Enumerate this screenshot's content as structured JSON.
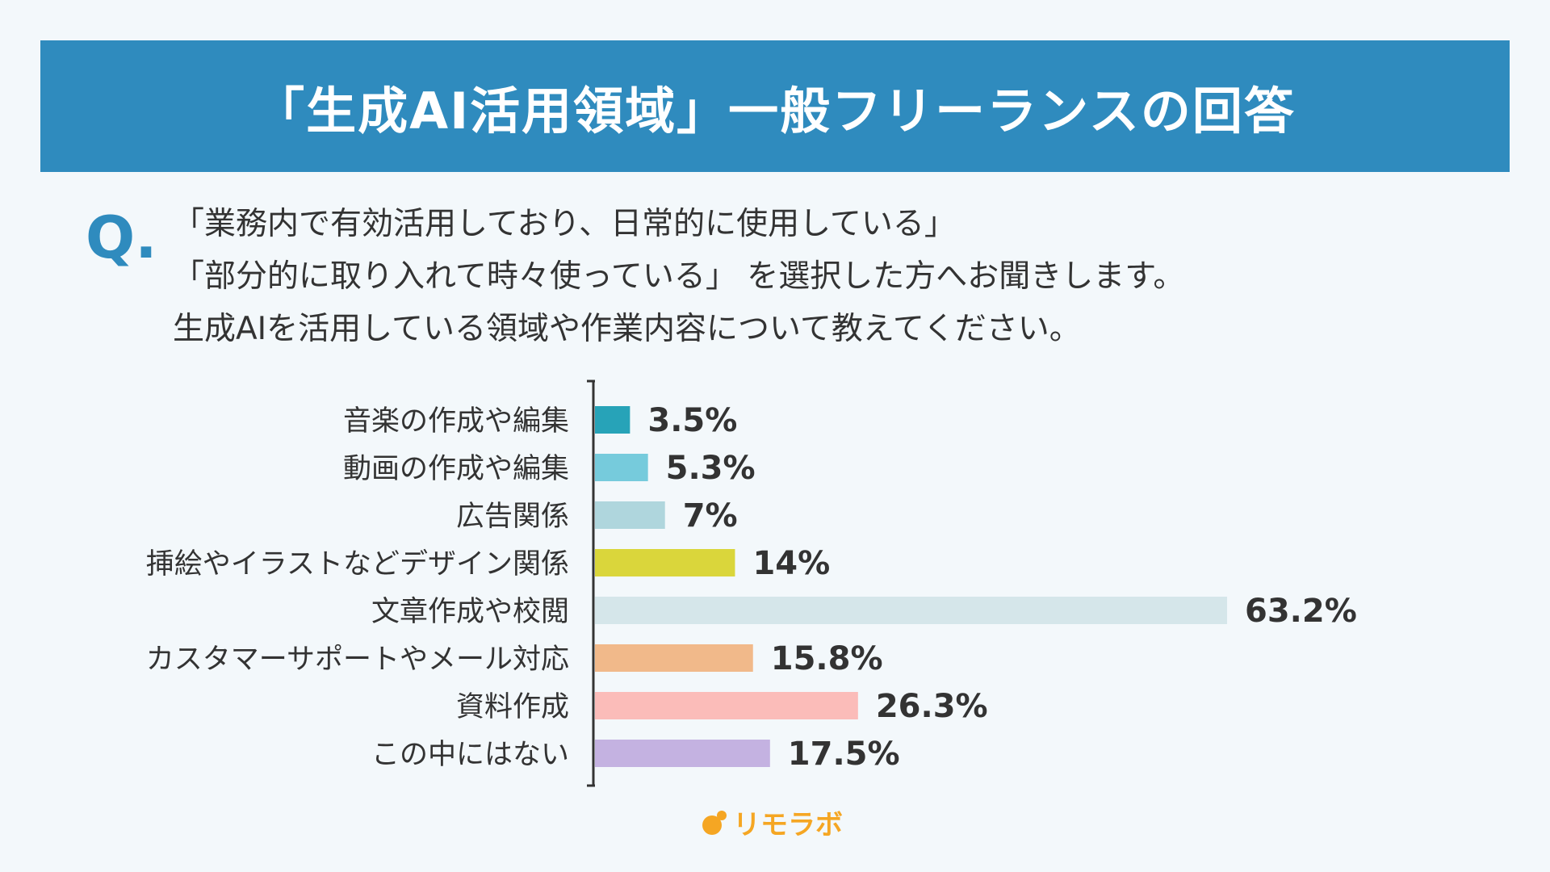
{
  "header": {
    "title": "「生成AI活用領域」一般フリーランスの回答"
  },
  "question": {
    "mark": "Q.",
    "lines": [
      "「業務内で有効活用しており、日常的に使用している」",
      "「部分的に取り入れて時々使っている」 を選択した方へお聞きします。",
      " 生成AIを活用している領域や作業内容について教えてください。"
    ]
  },
  "logo": {
    "text": "リモラボ",
    "color": "#f5a623"
  },
  "colors": {
    "header_bg": "#2f8bbe",
    "page_bg": "#f3f8fb",
    "q_mark": "#2f8bbe"
  },
  "chart_data": {
    "type": "bar",
    "orientation": "horizontal",
    "categories": [
      "音楽の作成や編集",
      "動画の作成や編集",
      "広告関係",
      "挿絵やイラストなどデザイン関係",
      "文章作成や校閲",
      "カスタマーサポートやメール対応",
      "資料作成",
      "この中にはない"
    ],
    "values": [
      3.5,
      5.3,
      7,
      14,
      63.2,
      15.8,
      26.3,
      17.5
    ],
    "value_labels": [
      "3.5%",
      "5.3%",
      "7%",
      "14%",
      "63.2%",
      "15.8%",
      "26.3%",
      "17.5%"
    ],
    "bar_colors": [
      "#27a3b8",
      "#76cbdc",
      "#afd6dd",
      "#dad63b",
      "#d5e6ea",
      "#f1b98a",
      "#fbbcb9",
      "#c4b2e1"
    ],
    "unit": "%",
    "xlim": [
      0,
      70
    ],
    "grid": false,
    "legend": "none"
  }
}
